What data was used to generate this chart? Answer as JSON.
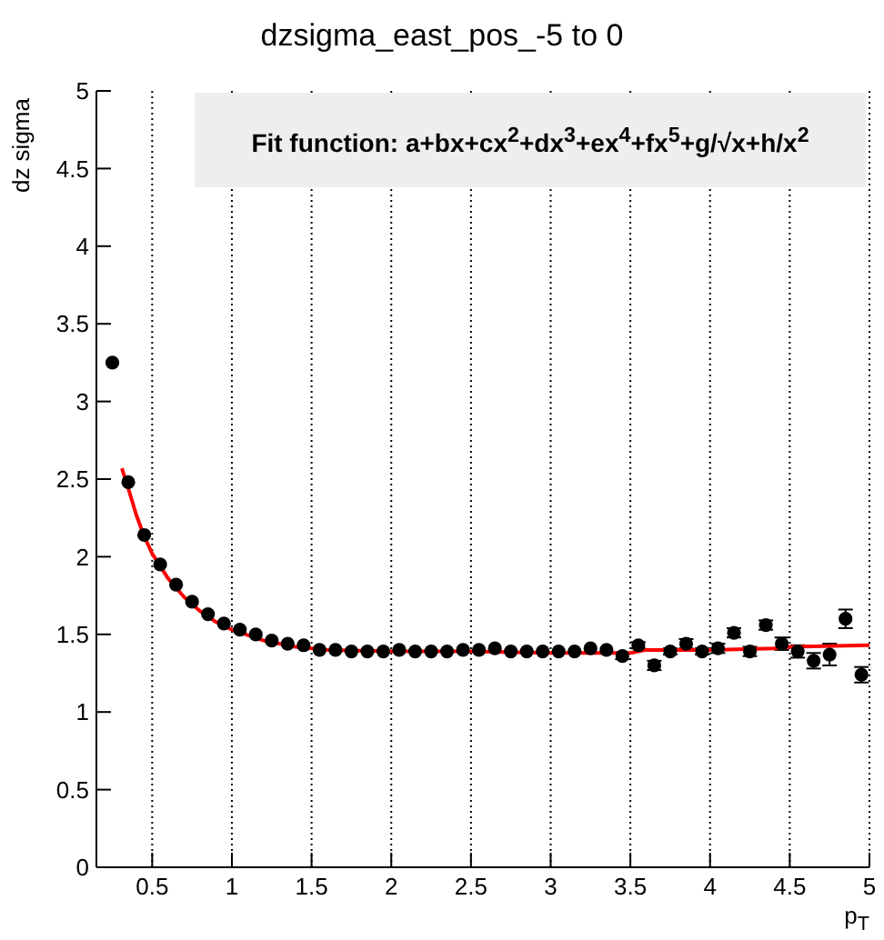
{
  "chart_data": {
    "type": "scatter",
    "title": "dzsigma_east_pos_-5 to 0",
    "xlabel": "p$_{T}$",
    "ylabel": "dz sigma",
    "annotations": [
      "Fit function: a+bx+cx$^{2}$+dx$^{3}$+ex$^{4}$+fx$^{5}$+g/√x+h/x$^{2}$"
    ],
    "xlim": [
      0.15,
      5
    ],
    "xticks": [
      0.5,
      1,
      1.5,
      2,
      2.5,
      3,
      3.5,
      4,
      4.5,
      5
    ],
    "ylim": [
      0,
      5
    ],
    "yticks": [
      0,
      0.5,
      1,
      1.5,
      2,
      2.5,
      3,
      3.5,
      4,
      4.5,
      5
    ],
    "grid": "x",
    "series": [
      {
        "marker": "circle",
        "color": "#000000",
        "x": [
          0.25,
          0.35,
          0.45,
          0.55,
          0.65,
          0.75,
          0.85,
          0.95,
          1.05,
          1.15,
          1.25,
          1.35,
          1.45,
          1.55,
          1.65,
          1.75,
          1.85,
          1.95,
          2.05,
          2.15,
          2.25,
          2.35,
          2.45,
          2.55,
          2.65,
          2.75,
          2.85,
          2.95,
          3.05,
          3.15,
          3.25,
          3.35,
          3.45,
          3.55,
          3.65,
          3.75,
          3.85,
          3.95,
          4.05,
          4.15,
          4.25,
          4.35,
          4.45,
          4.55,
          4.65,
          4.75,
          4.85,
          4.95
        ],
        "values": [
          3.25,
          2.48,
          2.14,
          1.95,
          1.82,
          1.71,
          1.63,
          1.57,
          1.53,
          1.5,
          1.46,
          1.44,
          1.43,
          1.4,
          1.4,
          1.39,
          1.39,
          1.39,
          1.4,
          1.39,
          1.39,
          1.39,
          1.4,
          1.4,
          1.41,
          1.39,
          1.39,
          1.39,
          1.39,
          1.39,
          1.41,
          1.4,
          1.36,
          1.43,
          1.3,
          1.39,
          1.44,
          1.39,
          1.41,
          1.51,
          1.39,
          1.56,
          1.44,
          1.39,
          1.33,
          1.37,
          1.6,
          1.24
        ],
        "errors": [
          null,
          null,
          null,
          null,
          null,
          null,
          null,
          null,
          null,
          null,
          null,
          null,
          null,
          null,
          null,
          null,
          null,
          null,
          null,
          null,
          null,
          null,
          null,
          null,
          null,
          null,
          null,
          null,
          null,
          null,
          null,
          null,
          0.02,
          0.02,
          0.03,
          0.02,
          0.03,
          0.02,
          0.03,
          0.03,
          0.03,
          0.03,
          0.04,
          0.04,
          0.05,
          0.07,
          0.06,
          0.05
        ]
      },
      {
        "type": "line",
        "marker": "none",
        "color": "#ff0000",
        "x": [
          0.31,
          0.35,
          0.4,
          0.45,
          0.5,
          0.6,
          0.7,
          0.8,
          0.9,
          1.0,
          1.2,
          1.4,
          1.6,
          2.0,
          2.5,
          3.0,
          3.5,
          3.6,
          4.0,
          4.4,
          4.5,
          5.0
        ],
        "values": [
          2.57,
          2.44,
          2.27,
          2.13,
          2.02,
          1.86,
          1.74,
          1.65,
          1.58,
          1.53,
          1.46,
          1.42,
          1.4,
          1.39,
          1.39,
          1.38,
          1.38,
          1.4,
          1.4,
          1.41,
          1.42,
          1.43
        ]
      }
    ]
  }
}
